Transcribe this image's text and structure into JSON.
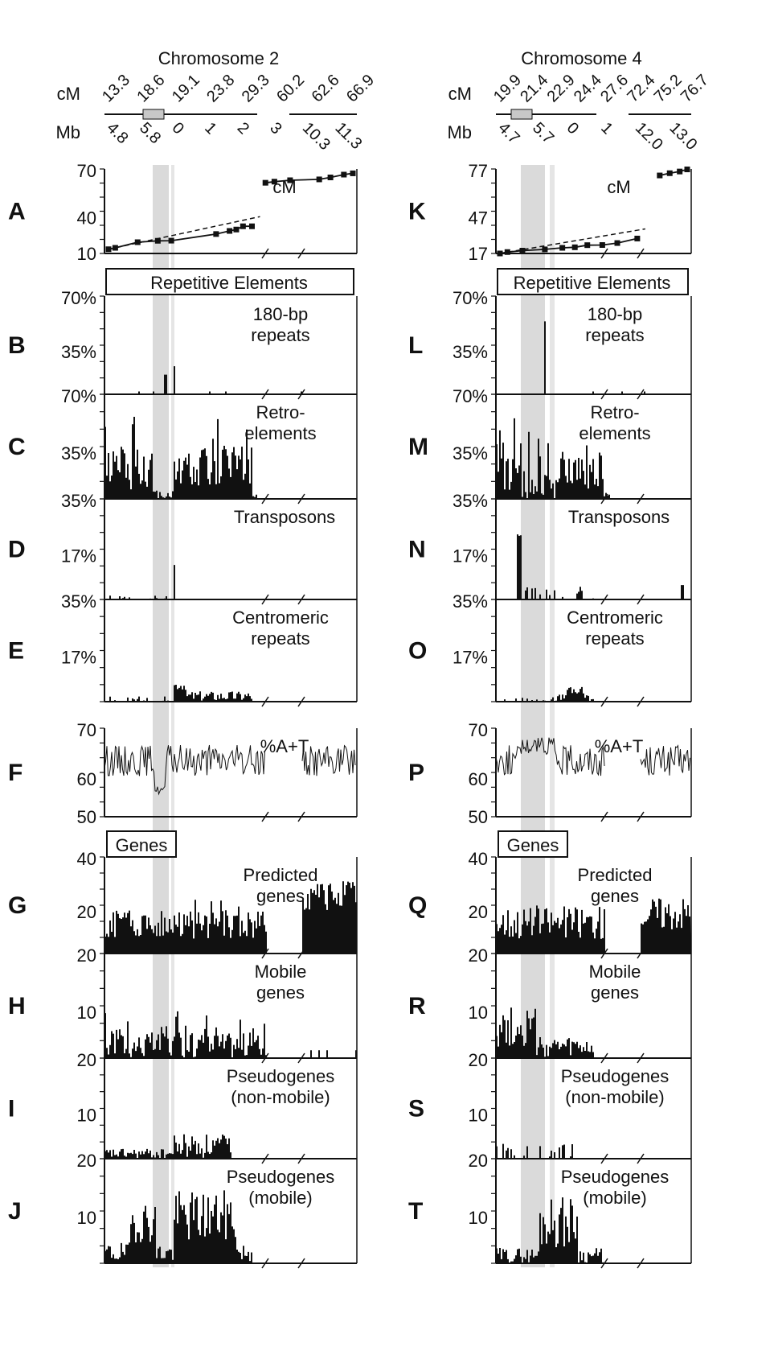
{
  "chart_data": [
    {
      "chromosome": "Chromosome 2",
      "cM_label": "cM",
      "Mb_label": "Mb",
      "cM_markers": [
        "13.3",
        "18.6",
        "19.1",
        "23.8",
        "29.3",
        "60.2",
        "62.6",
        "66.9"
      ],
      "Mb_markers": [
        "4.8",
        "5.8",
        "0",
        "1",
        "2",
        "3",
        "10.3",
        "11.3"
      ],
      "section_labels": {
        "repeats": "Repetitive Elements",
        "genes": "Genes"
      },
      "panels": [
        {
          "letter": "A",
          "title": "cM",
          "ticks": [
            "70",
            "40",
            "10"
          ],
          "type": "line",
          "ylim": [
            10,
            70
          ],
          "x": [
            0.0,
            0.3,
            1.3,
            2.2,
            2.8,
            4.8,
            5.4,
            5.7,
            6.0,
            6.4,
            7.0,
            7.4,
            8.1,
            9.4,
            9.9,
            10.5,
            10.9
          ],
          "y": [
            13,
            14,
            18,
            19,
            19.1,
            23.8,
            26,
            27,
            29.3,
            29.3,
            60.2,
            61,
            62,
            62.6,
            64,
            66,
            66.9
          ]
        },
        {
          "letter": "B",
          "title": "180-bp\nrepeats",
          "ticks": [
            "70%",
            "35%",
            ""
          ],
          "type": "bar",
          "ylim": [
            0,
            70
          ],
          "seed": 11,
          "profile": "b"
        },
        {
          "letter": "C",
          "title": "Retro-\nelements",
          "ticks": [
            "70%",
            "35%",
            ""
          ],
          "type": "bar",
          "ylim": [
            0,
            70
          ],
          "seed": 12,
          "profile": "c"
        },
        {
          "letter": "D",
          "title": "Transposons",
          "ticks": [
            "35%",
            "17%",
            ""
          ],
          "type": "bar",
          "ylim": [
            0,
            35
          ],
          "seed": 13,
          "profile": "d"
        },
        {
          "letter": "E",
          "title": "Centromeric\nrepeats",
          "ticks": [
            "35%",
            "17%",
            ""
          ],
          "type": "bar",
          "ylim": [
            0,
            35
          ],
          "seed": 14,
          "profile": "e"
        },
        {
          "letter": "F",
          "title": "%A+T",
          "ticks": [
            "70",
            "60",
            "50"
          ],
          "type": "trace",
          "ylim": [
            50,
            70
          ],
          "seed": 15,
          "profile": "f"
        },
        {
          "letter": "G",
          "title": "Predicted\ngenes",
          "ticks": [
            "40",
            "20",
            ""
          ],
          "type": "bar",
          "ylim": [
            0,
            40
          ],
          "seed": 16,
          "profile": "g"
        },
        {
          "letter": "H",
          "title": "Mobile\ngenes",
          "ticks": [
            "20",
            "10",
            ""
          ],
          "type": "bar",
          "ylim": [
            0,
            20
          ],
          "seed": 17,
          "profile": "h"
        },
        {
          "letter": "I",
          "title": "Pseudogenes\n(non-mobile)",
          "ticks": [
            "20",
            "10",
            ""
          ],
          "type": "bar",
          "ylim": [
            0,
            20
          ],
          "seed": 18,
          "profile": "i"
        },
        {
          "letter": "J",
          "title": "Pseudogenes\n(mobile)",
          "ticks": [
            "20",
            "10",
            ""
          ],
          "type": "bar",
          "ylim": [
            0,
            20
          ],
          "seed": 19,
          "profile": "j"
        }
      ]
    },
    {
      "chromosome": "Chromosome 4",
      "cM_label": "cM",
      "Mb_label": "Mb",
      "cM_markers": [
        "19.9",
        "21.4",
        "22.9",
        "24.4",
        "27.6",
        "72.4",
        "75.2",
        "76.7"
      ],
      "Mb_markers": [
        "4.7",
        "5.7",
        "0",
        "1",
        "12.0",
        "13.0"
      ],
      "section_labels": {
        "repeats": "Repetitive Elements",
        "genes": "Genes"
      },
      "panels": [
        {
          "letter": "K",
          "title": "cM",
          "ticks": [
            "77",
            "47",
            "17"
          ],
          "type": "line",
          "ylim": [
            17,
            77
          ],
          "x": [
            0.0,
            0.3,
            0.9,
            1.8,
            2.5,
            3.0,
            3.5,
            4.1,
            4.7,
            5.5,
            6.4,
            6.8,
            7.2,
            7.5
          ],
          "y": [
            17,
            18,
            19,
            19.9,
            21,
            21.4,
            22.9,
            23,
            24.4,
            27.6,
            72.4,
            74,
            75.2,
            76.7
          ]
        },
        {
          "letter": "L",
          "title": "180-bp\nrepeats",
          "ticks": [
            "70%",
            "35%",
            ""
          ],
          "type": "bar",
          "ylim": [
            0,
            70
          ],
          "seed": 21,
          "profile": "l"
        },
        {
          "letter": "M",
          "title": "Retro-\nelements",
          "ticks": [
            "70%",
            "35%",
            ""
          ],
          "type": "bar",
          "ylim": [
            0,
            70
          ],
          "seed": 22,
          "profile": "m"
        },
        {
          "letter": "N",
          "title": "Transposons",
          "ticks": [
            "35%",
            "17%",
            ""
          ],
          "type": "bar",
          "ylim": [
            0,
            35
          ],
          "seed": 23,
          "profile": "n"
        },
        {
          "letter": "O",
          "title": "Centromeric\nrepeats",
          "ticks": [
            "35%",
            "17%",
            ""
          ],
          "type": "bar",
          "ylim": [
            0,
            35
          ],
          "seed": 24,
          "profile": "o"
        },
        {
          "letter": "P",
          "title": "%A+T",
          "ticks": [
            "70",
            "60",
            "50"
          ],
          "type": "trace",
          "ylim": [
            50,
            70
          ],
          "seed": 25,
          "profile": "p"
        },
        {
          "letter": "Q",
          "title": "Predicted\ngenes",
          "ticks": [
            "40",
            "20",
            ""
          ],
          "type": "bar",
          "ylim": [
            0,
            40
          ],
          "seed": 26,
          "profile": "q"
        },
        {
          "letter": "R",
          "title": "Mobile\ngenes",
          "ticks": [
            "20",
            "10",
            ""
          ],
          "type": "bar",
          "ylim": [
            0,
            20
          ],
          "seed": 27,
          "profile": "r"
        },
        {
          "letter": "S",
          "title": "Pseudogenes\n(non-mobile)",
          "ticks": [
            "20",
            "10",
            ""
          ],
          "type": "bar",
          "ylim": [
            0,
            20
          ],
          "seed": 28,
          "profile": "s"
        },
        {
          "letter": "T",
          "title": "Pseudogenes\n(mobile)",
          "ticks": [
            "20",
            "10",
            ""
          ],
          "type": "bar",
          "ylim": [
            0,
            20
          ],
          "seed": 29,
          "profile": "t"
        }
      ]
    }
  ]
}
